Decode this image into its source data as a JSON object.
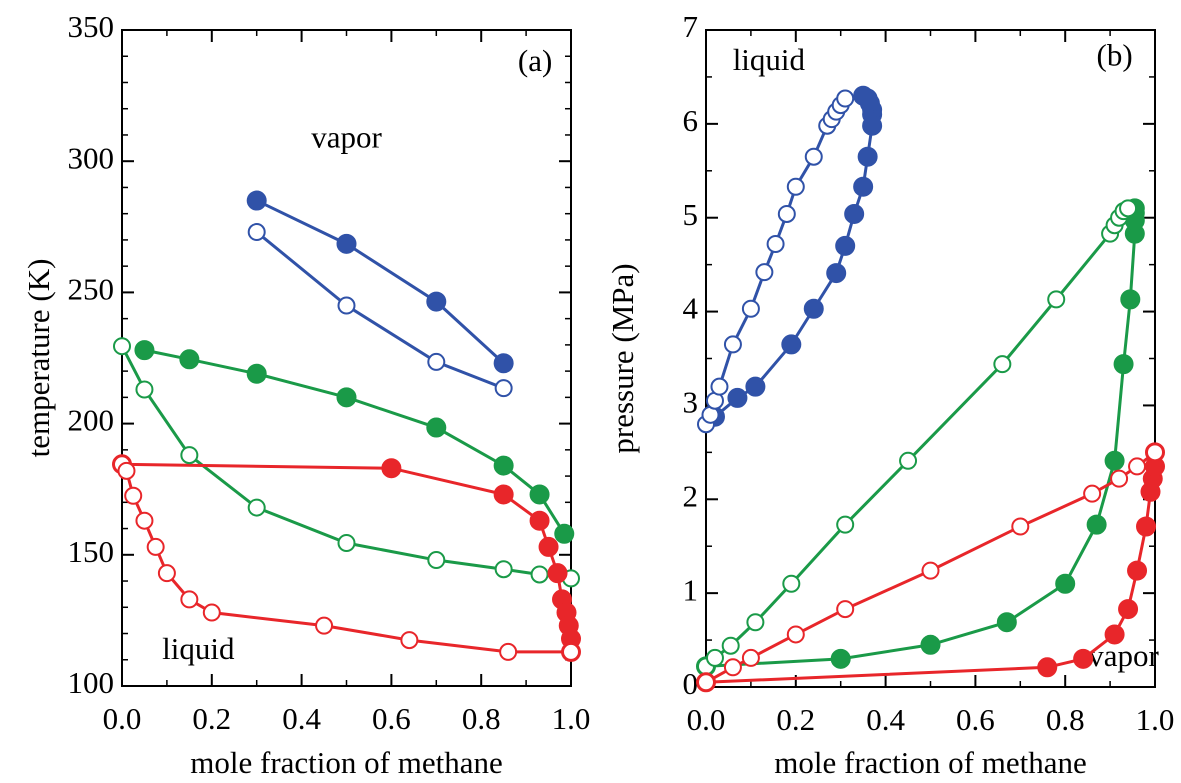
{
  "chart_data": [
    {
      "type": "line",
      "xlabel": "mole fraction of methane",
      "ylabel": "temperature (K)",
      "xlim": [
        0,
        1
      ],
      "ylim": [
        100,
        350
      ],
      "xticks": [
        {
          "value": 0,
          "label": "0.0"
        },
        0.2,
        0.4,
        0.6,
        0.8,
        {
          "value": 1,
          "label": "1.0"
        }
      ],
      "yticks": [
        100,
        150,
        200,
        250,
        300,
        350
      ],
      "xminorticks": [
        0.1,
        0.3,
        0.5,
        0.7,
        0.9
      ],
      "yminorticks": [
        110,
        120,
        130,
        140,
        160,
        170,
        180,
        190,
        210,
        220,
        230,
        240,
        260,
        270,
        280,
        290,
        310,
        320,
        330,
        340
      ],
      "annotations": [
        {
          "text": "(a)",
          "x": 0.92,
          "y": 337
        },
        {
          "text": "vapor",
          "x": 0.5,
          "y": 308
        },
        {
          "text": "liquid",
          "x": 0.17,
          "y": 113
        }
      ],
      "series": [
        {
          "color": "#3052a8",
          "marker": "filled",
          "x": [
            0.3,
            0.5,
            0.7,
            0.85
          ],
          "values": [
            285,
            268.5,
            246.5,
            223
          ]
        },
        {
          "color": "#3052a8",
          "marker": "open",
          "x": [
            0.3,
            0.5,
            0.7,
            0.85
          ],
          "values": [
            273,
            245,
            223.5,
            213.5
          ]
        },
        {
          "color": "#1a9a48",
          "marker": "filled",
          "x": [
            0.05,
            0.15,
            0.3,
            0.5,
            0.7,
            0.85,
            0.93,
            0.985
          ],
          "values": [
            228,
            224.5,
            219,
            210,
            198.5,
            184,
            173,
            158
          ]
        },
        {
          "color": "#1a9a48",
          "marker": "open",
          "x": [
            0.0,
            0.05,
            0.15,
            0.3,
            0.5,
            0.7,
            0.85,
            0.93,
            1.0
          ],
          "values": [
            229.5,
            213,
            188,
            168,
            154.5,
            148,
            144.5,
            142.5,
            141
          ]
        },
        {
          "color": "#e8262a",
          "marker": "filled",
          "x": [
            0.0,
            0.6,
            0.85,
            0.93,
            0.95,
            0.97,
            0.98,
            0.99,
            0.995,
            1.0,
            1.0
          ],
          "values": [
            184.5,
            183,
            173,
            163,
            153,
            143,
            133,
            128,
            123,
            118,
            113
          ]
        },
        {
          "color": "#e8262a",
          "marker": "open",
          "x": [
            0.0,
            0.01,
            0.025,
            0.05,
            0.075,
            0.1,
            0.15,
            0.2,
            0.45,
            0.64,
            0.86,
            1.0
          ],
          "values": [
            184.5,
            182,
            172.5,
            163,
            153,
            143,
            133,
            128,
            123,
            117.5,
            113,
            113
          ]
        }
      ]
    },
    {
      "type": "line",
      "xlabel": "mole fraction of methane",
      "ylabel": "pressure (MPa)",
      "xlim": [
        0,
        1
      ],
      "ylim": [
        0,
        7
      ],
      "xticks": [
        {
          "value": 0,
          "label": "0.0"
        },
        0.2,
        0.4,
        0.6,
        0.8,
        {
          "value": 1,
          "label": "1.0"
        }
      ],
      "yticks": [
        0,
        1,
        2,
        3,
        4,
        5,
        6,
        7
      ],
      "xminorticks": [
        0.1,
        0.3,
        0.5,
        0.7,
        0.9
      ],
      "yminorticks": [
        0.5,
        1.5,
        2.5,
        3.5,
        4.5,
        5.5,
        6.5
      ],
      "annotations": [
        {
          "text": "(b)",
          "x": 0.91,
          "y": 6.7
        },
        {
          "text": "liquid",
          "x": 0.14,
          "y": 6.65
        },
        {
          "text": "vapor",
          "x": 0.93,
          "y": 0.3
        }
      ],
      "series": [
        {
          "color": "#3052a8",
          "marker": "filled",
          "x": [
            0.02,
            0.07,
            0.11,
            0.19,
            0.24,
            0.29,
            0.31,
            0.33,
            0.35,
            0.36,
            0.37,
            0.37,
            0.37,
            0.365,
            0.36,
            0.35
          ],
          "values": [
            2.88,
            3.08,
            3.2,
            3.65,
            4.03,
            4.41,
            4.7,
            5.04,
            5.33,
            5.65,
            5.98,
            6.1,
            6.15,
            6.22,
            6.27,
            6.3
          ]
        },
        {
          "color": "#3052a8",
          "marker": "open",
          "x": [
            0.0,
            0.01,
            0.02,
            0.03,
            0.06,
            0.1,
            0.13,
            0.155,
            0.18,
            0.2,
            0.24,
            0.27,
            0.28,
            0.29,
            0.3,
            0.31
          ],
          "values": [
            2.8,
            2.9,
            3.05,
            3.2,
            3.65,
            4.03,
            4.42,
            4.72,
            5.04,
            5.33,
            5.65,
            5.98,
            6.05,
            6.13,
            6.2,
            6.27
          ]
        },
        {
          "color": "#1a9a48",
          "marker": "filled",
          "x": [
            0.0,
            0.3,
            0.5,
            0.67,
            0.8,
            0.87,
            0.91,
            0.93,
            0.945,
            0.955,
            0.955,
            0.955,
            0.955
          ],
          "values": [
            0.22,
            0.3,
            0.45,
            0.69,
            1.1,
            1.73,
            2.41,
            3.44,
            4.13,
            4.83,
            4.97,
            5.05,
            5.1
          ]
        },
        {
          "color": "#1a9a48",
          "marker": "open",
          "x": [
            0.0,
            0.02,
            0.055,
            0.11,
            0.19,
            0.31,
            0.45,
            0.66,
            0.78,
            0.9,
            0.91,
            0.92,
            0.93,
            0.94
          ],
          "values": [
            0.22,
            0.31,
            0.44,
            0.69,
            1.1,
            1.73,
            2.41,
            3.44,
            4.13,
            4.83,
            4.92,
            5.0,
            5.07,
            5.1
          ]
        },
        {
          "color": "#e8262a",
          "marker": "filled",
          "x": [
            0.0,
            0.76,
            0.84,
            0.91,
            0.94,
            0.96,
            0.98,
            0.99,
            0.995,
            1.0,
            1.0
          ],
          "values": [
            0.05,
            0.21,
            0.3,
            0.56,
            0.83,
            1.24,
            1.71,
            2.08,
            2.22,
            2.35,
            2.5
          ]
        },
        {
          "color": "#e8262a",
          "marker": "open",
          "x": [
            0.0,
            0.06,
            0.1,
            0.2,
            0.31,
            0.5,
            0.7,
            0.86,
            0.92,
            0.96,
            1.0
          ],
          "values": [
            0.05,
            0.21,
            0.31,
            0.56,
            0.83,
            1.24,
            1.71,
            2.06,
            2.22,
            2.35,
            2.5
          ]
        }
      ]
    }
  ]
}
